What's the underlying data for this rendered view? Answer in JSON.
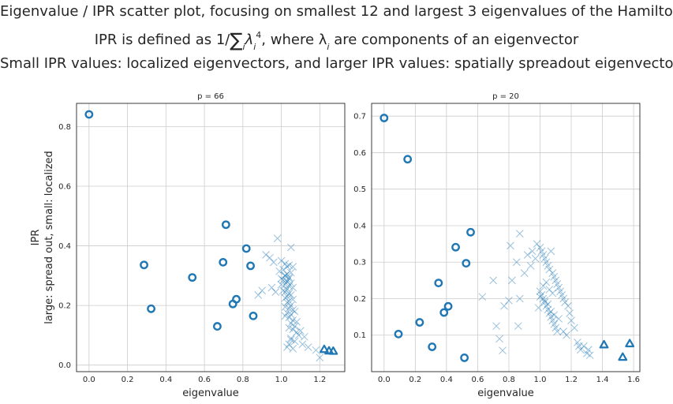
{
  "figure": {
    "title_line1": "Eigenvalue / IPR scatter plot, focusing on smallest 12 and largest 3 eigenvalues of the Hamiltonian",
    "title_line2_prefix": "IPR is defined as 1/",
    "title_line2_suffix": ", where λ",
    "title_line2_tail": " are components of an eigenvector",
    "title_line2_sigma": "∑",
    "title_line2_sub": "i",
    "title_line2_lambda": "λ",
    "title_line2_exp": "4",
    "title_line3": "Small IPR values: localized eigenvectors, and larger IPR values: spatially spreadout eigenvectors."
  },
  "colors": {
    "marker": "#1f77b4",
    "grid": "#cccccc",
    "axes": "#262626"
  },
  "chart_data": [
    {
      "type": "scatter",
      "title": "p = 66",
      "xlabel": "eigenvalue",
      "ylabel": "IPR\nlarge: spread out, small: localized",
      "xlim": [
        -0.065,
        1.33
      ],
      "ylim": [
        -0.022,
        0.878
      ],
      "xticks": [
        0.0,
        0.2,
        0.4,
        0.6,
        0.8,
        1.0,
        1.2
      ],
      "xtick_labels": [
        "0.0",
        "0.2",
        "0.4",
        "0.6",
        "0.8",
        "1.0",
        "1.2"
      ],
      "yticks": [
        0.0,
        0.2,
        0.4,
        0.6,
        0.8
      ],
      "ytick_labels": [
        "0.0",
        "0.2",
        "0.4",
        "0.6",
        "0.8"
      ],
      "grid": true,
      "series": [
        {
          "marker": "circle",
          "x": [
            0.0,
            0.286,
            0.323,
            0.537,
            0.667,
            0.697,
            0.712,
            0.748,
            0.766,
            0.818,
            0.84,
            0.854
          ],
          "y": [
            0.841,
            0.336,
            0.189,
            0.294,
            0.13,
            0.345,
            0.471,
            0.205,
            0.221,
            0.391,
            0.333,
            0.165
          ]
        },
        {
          "marker": "triangle",
          "x": [
            1.223,
            1.248,
            1.27
          ],
          "y": [
            0.053,
            0.048,
            0.047
          ]
        },
        {
          "marker": "x",
          "x": [
            0.98,
            1.05,
            0.92,
            0.94,
            0.96,
            1.0,
            1.02,
            1.03,
            1.04,
            1.01,
            0.99,
            1.06,
            1.05,
            1.03,
            1.02,
            1.04,
            1.0,
            1.01,
            1.03,
            1.05,
            1.02,
            1.04,
            1.06,
            1.03,
            1.01,
            1.02,
            1.04,
            1.05,
            1.03,
            1.02,
            1.06,
            1.04,
            1.03,
            1.05,
            1.02,
            1.04,
            1.06,
            1.07,
            1.03,
            1.05,
            1.02,
            1.04,
            1.06,
            1.08,
            1.05,
            1.07,
            1.04,
            1.06,
            1.1,
            1.08,
            1.09,
            1.12,
            1.05,
            0.88,
            0.9,
            0.95,
            1.07,
            1.11,
            1.14,
            1.18,
            1.2,
            1.03,
            1.04,
            1.05,
            1.06,
            1.03,
            1.04,
            1.02,
            1.0,
            0.97
          ],
          "y": [
            0.425,
            0.395,
            0.37,
            0.36,
            0.345,
            0.35,
            0.34,
            0.33,
            0.335,
            0.32,
            0.315,
            0.33,
            0.31,
            0.305,
            0.3,
            0.295,
            0.29,
            0.285,
            0.28,
            0.275,
            0.27,
            0.265,
            0.26,
            0.255,
            0.25,
            0.245,
            0.24,
            0.235,
            0.23,
            0.225,
            0.22,
            0.215,
            0.21,
            0.2,
            0.195,
            0.19,
            0.185,
            0.18,
            0.175,
            0.17,
            0.165,
            0.16,
            0.15,
            0.145,
            0.14,
            0.13,
            0.125,
            0.12,
            0.115,
            0.11,
            0.1,
            0.095,
            0.09,
            0.235,
            0.25,
            0.26,
            0.08,
            0.07,
            0.06,
            0.05,
            0.025,
            0.06,
            0.07,
            0.085,
            0.055,
            0.28,
            0.29,
            0.3,
            0.27,
            0.245
          ]
        }
      ]
    },
    {
      "type": "scatter",
      "title": "p = 20",
      "xlabel": "eigenvalue",
      "ylabel": "",
      "xlim": [
        -0.08,
        1.64
      ],
      "ylim": [
        0.0,
        0.735
      ],
      "xticks": [
        0.0,
        0.2,
        0.4,
        0.6,
        0.8,
        1.0,
        1.2,
        1.4,
        1.6
      ],
      "xtick_labels": [
        "0.0",
        "0.2",
        "0.4",
        "0.6",
        "0.8",
        "1.0",
        "1.2",
        "1.4",
        "1.6"
      ],
      "yticks": [
        0.1,
        0.2,
        0.3,
        0.4,
        0.5,
        0.6,
        0.7
      ],
      "ytick_labels": [
        "0.1",
        "0.2",
        "0.3",
        "0.4",
        "0.5",
        "0.6",
        "0.7"
      ],
      "grid": true,
      "series": [
        {
          "marker": "circle",
          "x": [
            0.0,
            0.092,
            0.151,
            0.228,
            0.308,
            0.349,
            0.384,
            0.411,
            0.459,
            0.515,
            0.526,
            0.555
          ],
          "y": [
            0.695,
            0.103,
            0.582,
            0.135,
            0.068,
            0.243,
            0.162,
            0.179,
            0.341,
            0.038,
            0.297,
            0.382
          ]
        },
        {
          "marker": "triangle",
          "x": [
            1.41,
            1.53,
            1.575
          ],
          "y": [
            0.074,
            0.04,
            0.077
          ]
        },
        {
          "marker": "x",
          "x": [
            0.87,
            0.81,
            0.63,
            0.7,
            0.72,
            0.76,
            0.77,
            0.8,
            0.82,
            0.85,
            0.87,
            0.9,
            0.92,
            0.94,
            0.95,
            0.97,
            0.98,
            1.0,
            1.01,
            1.02,
            1.03,
            1.04,
            1.05,
            1.06,
            1.07,
            1.08,
            1.09,
            1.1,
            1.11,
            1.12,
            1.13,
            1.14,
            1.15,
            1.16,
            1.18,
            1.19,
            1.2,
            1.22,
            1.24,
            1.25,
            1.26,
            1.28,
            1.3,
            1.31,
            1.32,
            1.0,
            1.01,
            1.02,
            1.03,
            1.04,
            1.05,
            1.06,
            1.07,
            1.08,
            1.09,
            1.1,
            1.11,
            1.02,
            1.04,
            1.06,
            1.08,
            1.0,
            1.03,
            1.05,
            0.99,
            1.07,
            1.09,
            1.12,
            0.86,
            0.74,
            1.15,
            1.17
          ],
          "y": [
            0.378,
            0.345,
            0.205,
            0.25,
            0.125,
            0.058,
            0.18,
            0.195,
            0.25,
            0.3,
            0.2,
            0.27,
            0.32,
            0.29,
            0.33,
            0.31,
            0.35,
            0.34,
            0.33,
            0.32,
            0.31,
            0.3,
            0.29,
            0.28,
            0.33,
            0.27,
            0.26,
            0.25,
            0.24,
            0.23,
            0.22,
            0.21,
            0.2,
            0.19,
            0.18,
            0.16,
            0.14,
            0.12,
            0.08,
            0.07,
            0.06,
            0.07,
            0.05,
            0.06,
            0.045,
            0.22,
            0.21,
            0.2,
            0.19,
            0.18,
            0.17,
            0.16,
            0.15,
            0.14,
            0.13,
            0.12,
            0.11,
            0.235,
            0.245,
            0.225,
            0.215,
            0.205,
            0.195,
            0.185,
            0.175,
            0.165,
            0.155,
            0.145,
            0.125,
            0.09,
            0.11,
            0.1
          ]
        }
      ]
    }
  ]
}
